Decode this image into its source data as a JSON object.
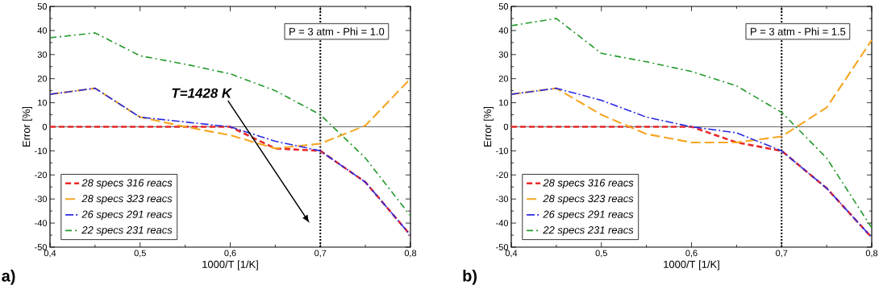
{
  "chart_data": [
    {
      "type": "line",
      "xlabel": "1000/T [1/K]",
      "ylabel": "Error [%]",
      "x": [
        0.4,
        0.45,
        0.5,
        0.55,
        0.6,
        0.65,
        0.7,
        0.75,
        0.8
      ],
      "xlim": [
        0.4,
        0.8
      ],
      "ylim": [
        -50,
        50
      ],
      "xticks": [
        {
          "value": 0.4,
          "label": "0,4"
        },
        {
          "value": 0.5,
          "label": "0,5"
        },
        {
          "value": 0.6,
          "label": "0,6"
        },
        {
          "value": 0.7,
          "label": "0,7"
        },
        {
          "value": 0.8,
          "label": "0,8"
        }
      ],
      "yticks": [
        -50,
        -40,
        -30,
        -20,
        -10,
        0,
        10,
        20,
        30,
        40,
        50
      ],
      "legend": "bottom left",
      "line_style": "dashed",
      "marker": "none",
      "series": [
        {
          "name": "28 specs 316 reacs",
          "color": "#e8282a",
          "values": [
            0,
            0,
            0,
            0,
            0,
            -9,
            -10,
            -23,
            -45
          ]
        },
        {
          "name": "28 specs 323 reacs",
          "color": "#f5a623",
          "values": [
            13.5,
            16,
            4,
            0,
            -3.5,
            -9,
            -7,
            0.5,
            20
          ]
        },
        {
          "name": "26 specs 291 reacs",
          "color": "#2a2ae0",
          "values": [
            13.5,
            16,
            4,
            2,
            0,
            -6,
            -10,
            -23,
            -45
          ]
        },
        {
          "name": "22 specs 231 reacs",
          "color": "#22992a",
          "values": [
            37,
            39,
            29.5,
            26,
            22,
            15,
            5,
            -13,
            -37
          ]
        }
      ],
      "ref_lines": [
        {
          "axis": "x",
          "value": 0.7,
          "color": "#000000",
          "line_style": "dotted"
        },
        {
          "axis": "y",
          "value": 0,
          "color": "#000000",
          "line_style": "solid"
        }
      ],
      "annotations": [
        "P = 3 atm - Phi = 1.0",
        "T=1428 K",
        "a)"
      ]
    },
    {
      "type": "line",
      "xlabel": "1000/T [1/K]",
      "ylabel": "Error [%]",
      "x": [
        0.4,
        0.45,
        0.5,
        0.55,
        0.6,
        0.65,
        0.7,
        0.75,
        0.8
      ],
      "xlim": [
        0.4,
        0.8
      ],
      "ylim": [
        -50,
        50
      ],
      "xticks": [
        {
          "value": 0.4,
          "label": "0,4"
        },
        {
          "value": 0.5,
          "label": "0,5"
        },
        {
          "value": 0.6,
          "label": "0,6"
        },
        {
          "value": 0.7,
          "label": "0,7"
        },
        {
          "value": 0.8,
          "label": "0,8"
        }
      ],
      "yticks": [
        -50,
        -40,
        -30,
        -20,
        -10,
        0,
        10,
        20,
        30,
        40,
        50
      ],
      "legend": "bottom left",
      "line_style": "dashed",
      "marker": "none",
      "series": [
        {
          "name": "28 specs 316 reacs",
          "color": "#e8282a",
          "values": [
            0,
            0,
            0,
            0,
            0,
            -6.5,
            -10,
            -25.5,
            -46
          ]
        },
        {
          "name": "28 specs 323 reacs",
          "color": "#f5a623",
          "values": [
            13.5,
            16,
            5,
            -3,
            -6.5,
            -6.5,
            -4,
            8,
            36
          ]
        },
        {
          "name": "26 specs 291 reacs",
          "color": "#2a2ae0",
          "values": [
            13.5,
            16,
            11,
            4,
            0,
            -2.5,
            -10,
            -25.5,
            -46
          ]
        },
        {
          "name": "22 specs 231 reacs",
          "color": "#22992a",
          "values": [
            42,
            45,
            30.5,
            27,
            23,
            17,
            6,
            -13,
            -42
          ]
        }
      ],
      "ref_lines": [
        {
          "axis": "x",
          "value": 0.7,
          "color": "#000000",
          "line_style": "dotted"
        },
        {
          "axis": "y",
          "value": 0,
          "color": "#000000",
          "line_style": "solid"
        }
      ],
      "annotations": [
        "P = 3 atm - Phi = 1.5",
        "b)"
      ]
    }
  ]
}
